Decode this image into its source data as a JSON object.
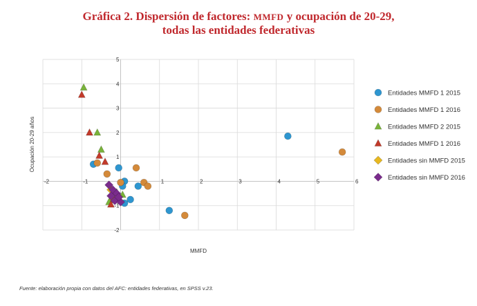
{
  "title_line1_a": "Gráfica 2. Dispersión de factores: ",
  "title_line1_sc": "MMFD",
  "title_line1_b": " y ocupación de 20-29,",
  "title_line2": "todas las entidades federativas",
  "footer": "Fuente: elaboración propia con datos del AFC: entidades federativas, en SPSS v.23.",
  "colors": {
    "mmfd1_2015": "#2e96d0",
    "mmfd1_2016": "#d48a3a",
    "mmfd2_2015": "#79b33a",
    "mmfd1b_2016": "#c23a2a",
    "sin_2015": "#e8b820",
    "sin_2016": "#7a2c8c"
  },
  "chart_data": {
    "type": "scatter",
    "xlabel": "MMFD",
    "ylabel": "Ocupación 20-29 años",
    "xlim": [
      -2,
      6
    ],
    "ylim": [
      -2,
      5
    ],
    "xticks": [
      "-2",
      "-1",
      "0",
      "1",
      "2",
      "3",
      "4",
      "5",
      "6"
    ],
    "yticks": [
      "-2",
      "-1",
      "0",
      "1",
      "2",
      "3",
      "4",
      "5"
    ],
    "grid": true,
    "legend_position": "right",
    "series": [
      {
        "name": "Entidades MMFD 1 2015",
        "marker": "circle",
        "color": "#2e96d0",
        "points": [
          [
            4.3,
            1.85
          ],
          [
            -0.7,
            0.7
          ],
          [
            -0.05,
            0.55
          ],
          [
            0.1,
            0.0
          ],
          [
            0.05,
            -0.2
          ],
          [
            0.25,
            -0.75
          ],
          [
            0.45,
            -0.2
          ],
          [
            0.1,
            -0.9
          ],
          [
            1.25,
            -1.2
          ]
        ]
      },
      {
        "name": "Entidades MMFD 1 2016",
        "marker": "circle",
        "color": "#d48a3a",
        "points": [
          [
            5.7,
            1.2
          ],
          [
            -0.6,
            0.75
          ],
          [
            -0.35,
            0.3
          ],
          [
            0.4,
            0.55
          ],
          [
            0.6,
            -0.05
          ],
          [
            0.7,
            -0.2
          ],
          [
            0.0,
            -0.05
          ],
          [
            -0.2,
            -0.75
          ],
          [
            1.65,
            -1.4
          ]
        ]
      },
      {
        "name": "Entidades MMFD 2 2015",
        "marker": "triangle",
        "color": "#79b33a",
        "points": [
          [
            -0.95,
            3.85
          ],
          [
            -0.6,
            2.0
          ],
          [
            -0.5,
            1.3
          ],
          [
            -0.1,
            -0.45
          ],
          [
            -0.3,
            -0.85
          ],
          [
            0.05,
            -0.55
          ]
        ]
      },
      {
        "name": "Entidades MMFD 1 2016",
        "marker": "triangle",
        "color": "#c23a2a",
        "points": [
          [
            -1.0,
            3.55
          ],
          [
            -0.8,
            2.0
          ],
          [
            -0.55,
            1.05
          ],
          [
            -0.4,
            0.8
          ],
          [
            -0.25,
            -0.95
          ],
          [
            -0.05,
            -0.7
          ]
        ]
      },
      {
        "name": "Entidades sin MMFD 2015",
        "marker": "diamond",
        "color": "#e8b820",
        "points": [
          [
            -0.15,
            -0.45
          ],
          [
            -0.05,
            -0.65
          ],
          [
            -0.25,
            -0.35
          ]
        ]
      },
      {
        "name": "Entidades sin MMFD 2016",
        "marker": "diamond",
        "color": "#7a2c8c",
        "points": [
          [
            -0.3,
            -0.15
          ],
          [
            -0.2,
            -0.35
          ],
          [
            -0.1,
            -0.5
          ],
          [
            -0.15,
            -0.8
          ],
          [
            0.0,
            -0.85
          ],
          [
            -0.25,
            -0.6
          ],
          [
            -0.05,
            -0.65
          ]
        ]
      }
    ]
  }
}
